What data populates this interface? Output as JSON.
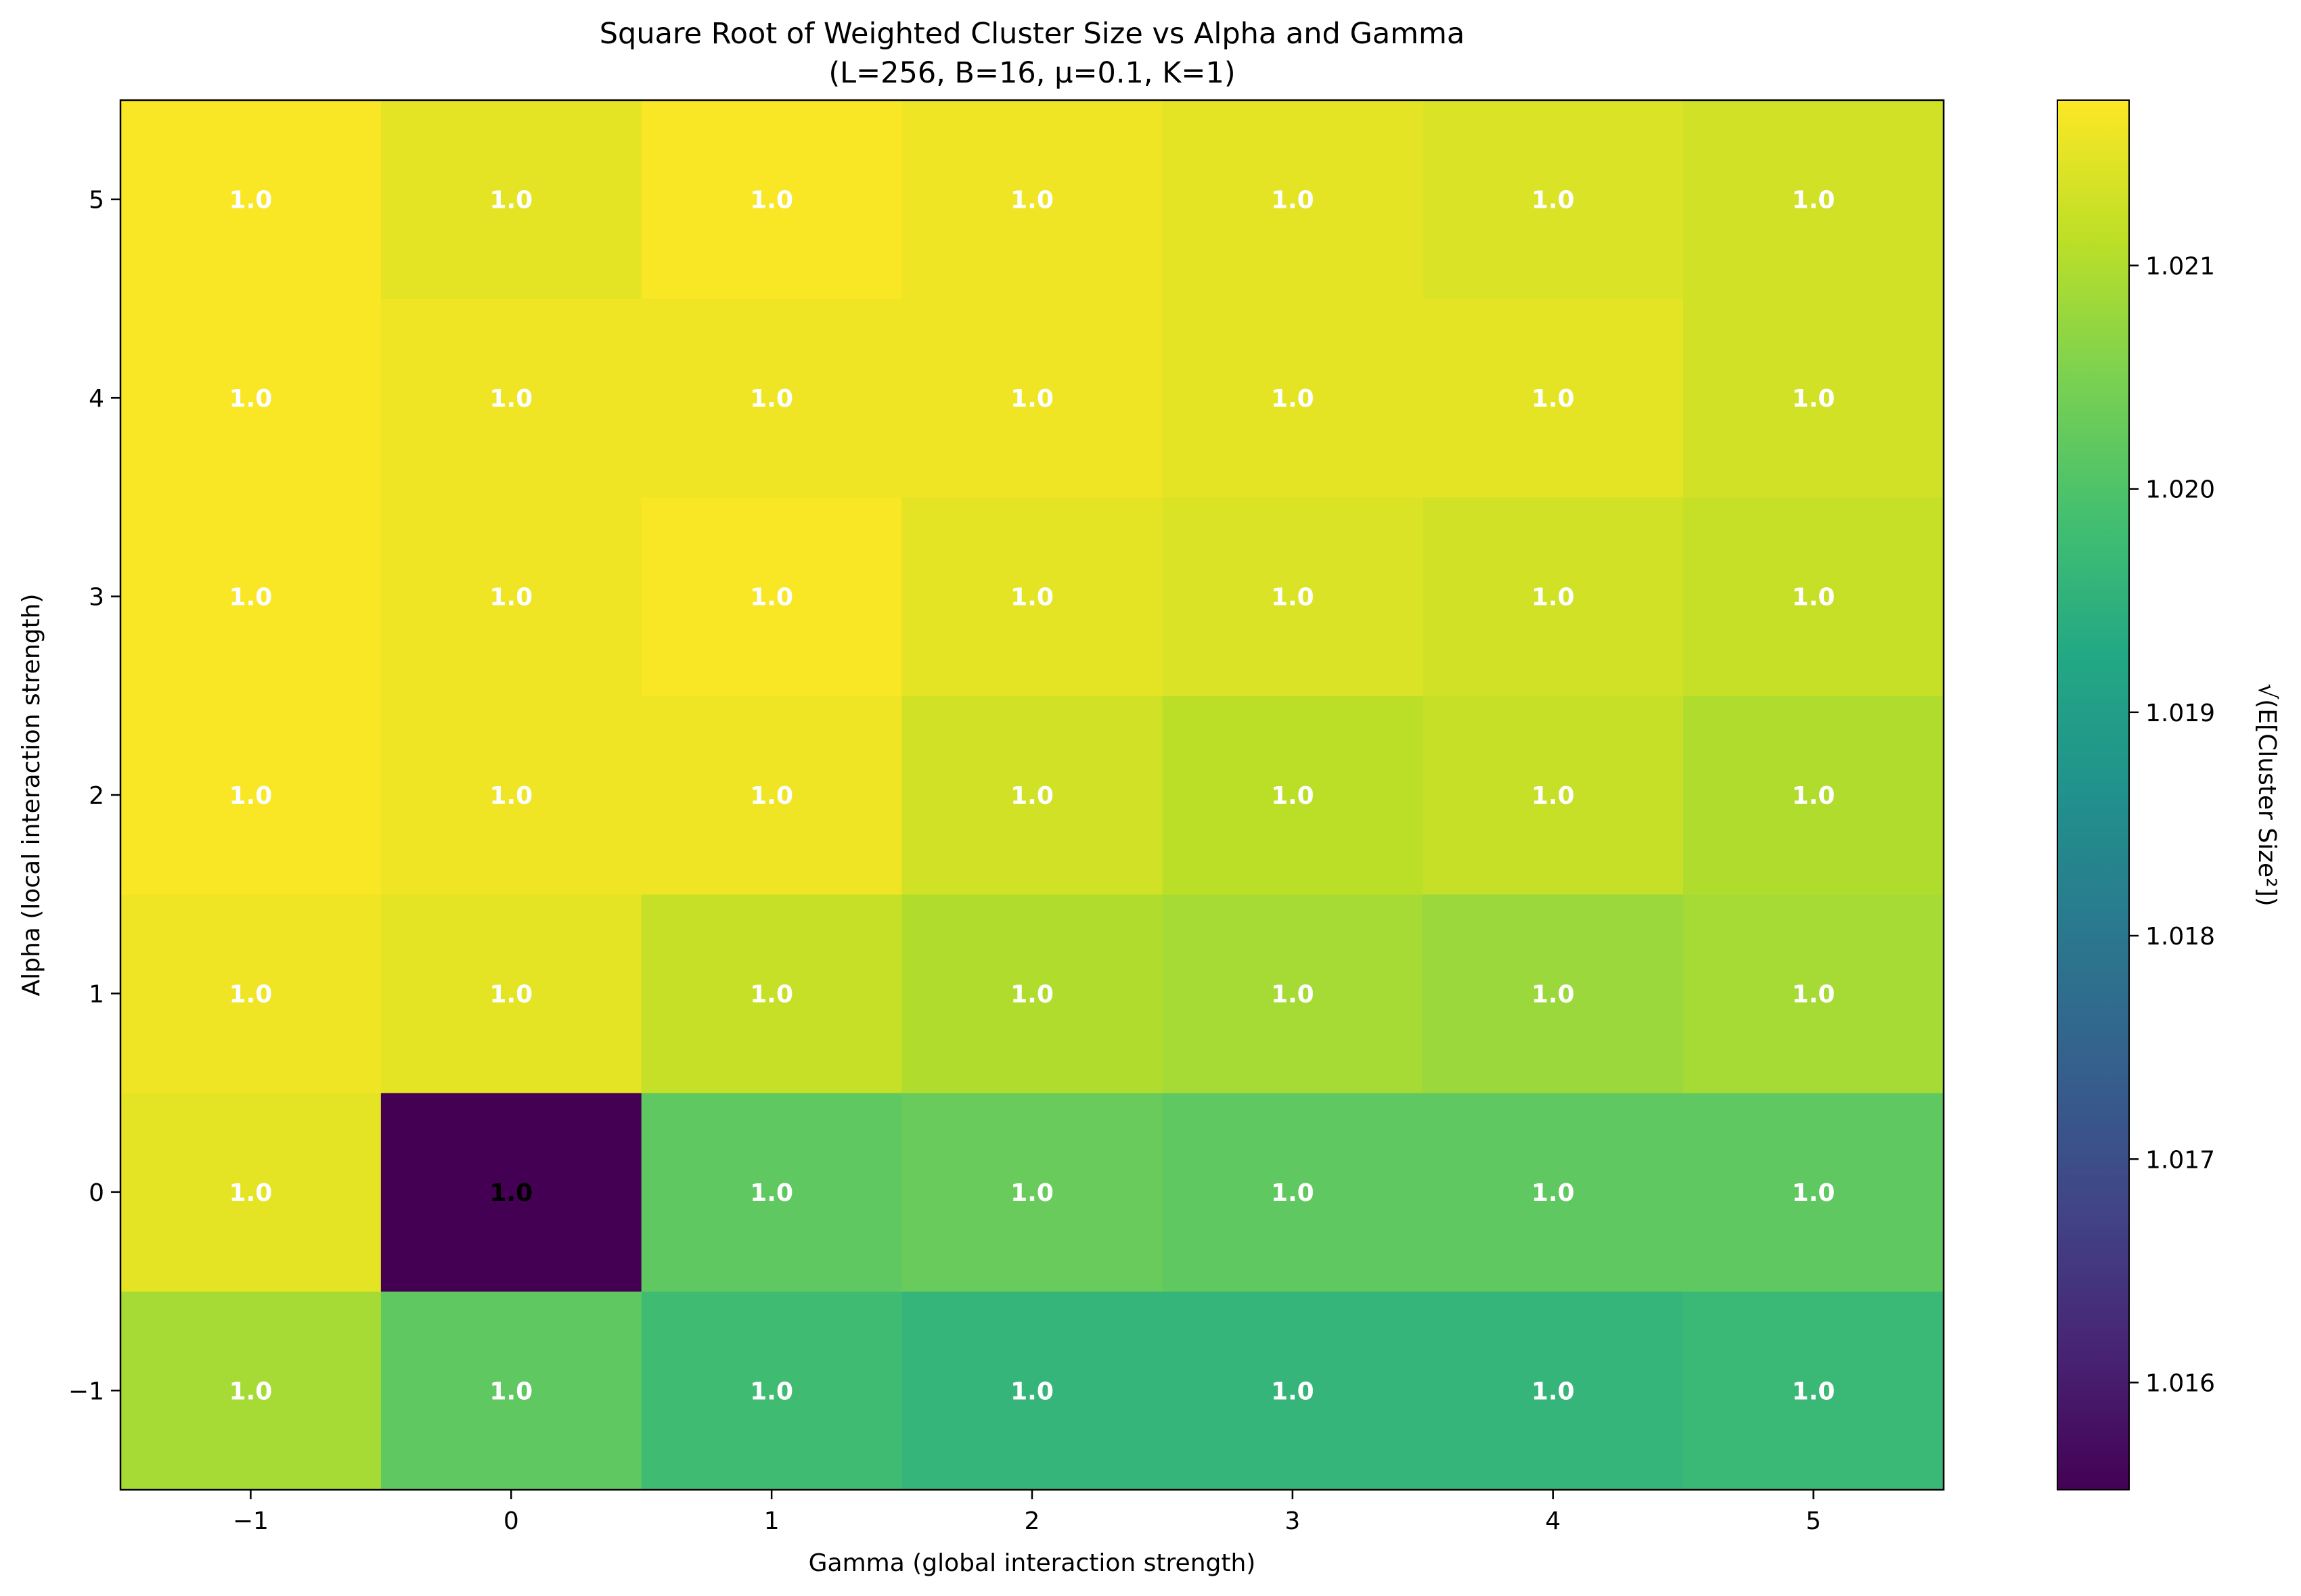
{
  "chart_data": {
    "type": "heatmap",
    "title": "Square Root of Weighted Cluster Size vs Alpha and Gamma",
    "subtitle": "(L=256, B=16, μ=0.1, K=1)",
    "xlabel": "Gamma (global interaction strength)",
    "ylabel": "Alpha (local interaction strength)",
    "x": [
      -1,
      0,
      1,
      2,
      3,
      4,
      5
    ],
    "y": [
      -1,
      0,
      1,
      2,
      3,
      4,
      5
    ],
    "x_tick_labels": [
      "−1",
      "0",
      "1",
      "2",
      "3",
      "4",
      "5"
    ],
    "y_tick_labels": [
      "−1",
      "0",
      "1",
      "2",
      "3",
      "4",
      "5"
    ],
    "values": [
      [
        1.0209,
        1.0202,
        1.0198,
        1.0196,
        1.0196,
        1.0196,
        1.0197
      ],
      [
        1.0215,
        1.0155,
        1.0202,
        1.0203,
        1.0202,
        1.0202,
        1.0202
      ],
      [
        1.0216,
        1.0215,
        1.0212,
        1.021,
        1.0209,
        1.0208,
        1.0209
      ],
      [
        1.0217,
        1.0216,
        1.0216,
        1.0213,
        1.0211,
        1.0212,
        1.021
      ],
      [
        1.0217,
        1.0216,
        1.0217,
        1.0215,
        1.0214,
        1.0213,
        1.0212
      ],
      [
        1.0217,
        1.0216,
        1.0216,
        1.0216,
        1.0215,
        1.0215,
        1.0213
      ],
      [
        1.0217,
        1.0215,
        1.0217,
        1.0216,
        1.0215,
        1.0214,
        1.0213
      ]
    ],
    "cell_labels": [
      [
        "1.0",
        "1.0",
        "1.0",
        "1.0",
        "1.0",
        "1.0",
        "1.0"
      ],
      [
        "1.0",
        "1.0",
        "1.0",
        "1.0",
        "1.0",
        "1.0",
        "1.0"
      ],
      [
        "1.0",
        "1.0",
        "1.0",
        "1.0",
        "1.0",
        "1.0",
        "1.0"
      ],
      [
        "1.0",
        "1.0",
        "1.0",
        "1.0",
        "1.0",
        "1.0",
        "1.0"
      ],
      [
        "1.0",
        "1.0",
        "1.0",
        "1.0",
        "1.0",
        "1.0",
        "1.0"
      ],
      [
        "1.0",
        "1.0",
        "1.0",
        "1.0",
        "1.0",
        "1.0",
        "1.0"
      ],
      [
        "1.0",
        "1.0",
        "1.0",
        "1.0",
        "1.0",
        "1.0",
        "1.0"
      ]
    ],
    "label_colors": {
      "default": "#ffffff",
      "dark_cells": "#000000"
    },
    "colormap": "viridis",
    "colorbar": {
      "label": "√(E[Cluster Size²])",
      "range": [
        1.01552,
        1.02174
      ],
      "ticks": [
        1.016,
        1.017,
        1.018,
        1.019,
        1.02,
        1.021
      ],
      "tick_labels": [
        "1.016",
        "1.017",
        "1.018",
        "1.019",
        "1.020",
        "1.021"
      ]
    },
    "grid": false
  }
}
